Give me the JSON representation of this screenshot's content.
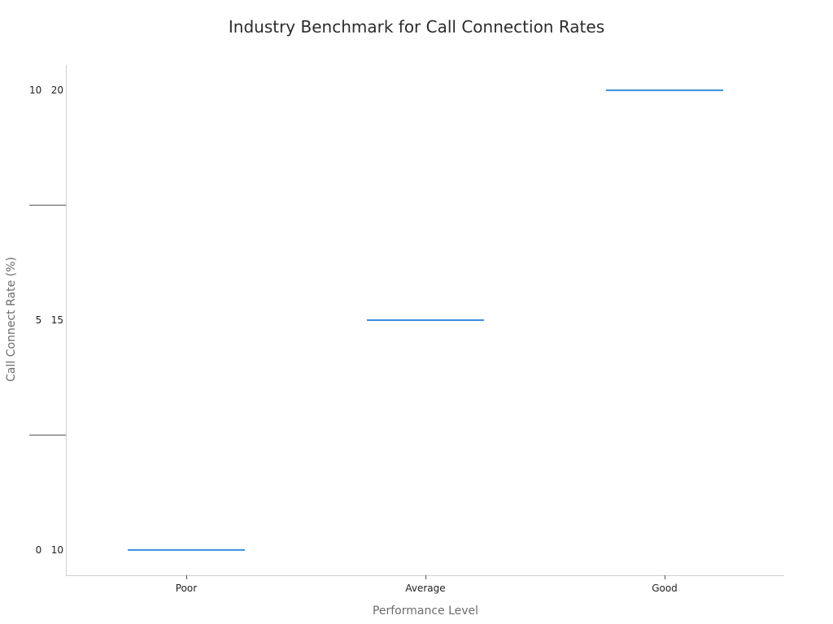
{
  "chart_data": {
    "type": "line",
    "title": "Industry Benchmark for Call Connection Rates",
    "xlabel": "Performance Level",
    "ylabel": "Call Connect Rate (%)",
    "categories": [
      "Poor",
      "Average",
      "Good"
    ],
    "y_ticks": [
      {
        "label": "0   10",
        "value": 10
      },
      {
        "label": "5   15",
        "value": 15
      },
      {
        "label": "10   20",
        "value": 20
      }
    ],
    "ylim": [
      9.45,
      20.55
    ],
    "series": [
      {
        "values": [
          10,
          15,
          20
        ],
        "color": "#3a8fde",
        "style": "horizontal-segment"
      }
    ],
    "grid": false,
    "colors": {
      "axis": "#d0d0d0",
      "tick_mark": "#555555",
      "series": "#3a8fde"
    }
  }
}
